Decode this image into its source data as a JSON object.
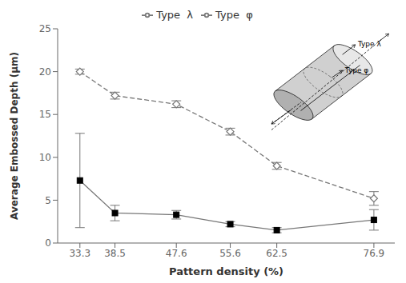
{
  "chart_data": {
    "type": "line",
    "x": [
      33.3,
      38.5,
      47.6,
      55.6,
      62.5,
      76.9
    ],
    "xlim": [
      30,
      80
    ],
    "xticks": [
      33.3,
      38.5,
      47.6,
      55.6,
      62.5,
      76.9
    ],
    "ylim": [
      0,
      25
    ],
    "yticks": [
      0,
      5,
      10,
      15,
      20,
      25
    ],
    "x_label": "Pattern density (%)",
    "y_label": "Average Embossed Depth (μm)",
    "series": [
      {
        "name": "Type  λ",
        "color": "#777777",
        "line_style": "dashed",
        "marker": "diamond",
        "values": [
          20.0,
          17.2,
          16.2,
          13.0,
          9.0,
          5.2
        ],
        "errors": [
          0.3,
          0.4,
          0.4,
          0.4,
          0.4,
          0.8
        ]
      },
      {
        "name": "Type  φ",
        "color": "#777777",
        "line_style": "solid",
        "marker": "square",
        "values": [
          7.3,
          3.5,
          3.3,
          2.2,
          1.5,
          2.7
        ],
        "errors": [
          5.5,
          0.9,
          0.5,
          0.3,
          0.3,
          1.2
        ]
      }
    ],
    "annotations": [
      "Type λ",
      "Type φ"
    ],
    "legend": "upper center",
    "grid": false
  }
}
